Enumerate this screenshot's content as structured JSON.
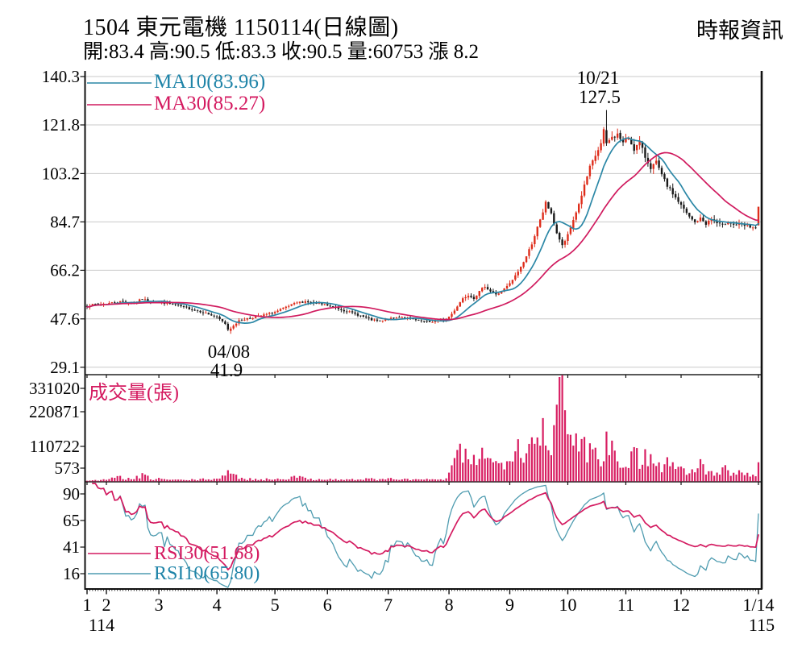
{
  "header": {
    "title": "1504  東元電機 1150114(日線圖)",
    "source": "時報資訊",
    "info": "開:83.4 高:90.5 低:83.3 收:90.5 量:60753 漲 8.2"
  },
  "colors": {
    "up_candle": "#de2d1b",
    "down_candle": "#1a1a1a",
    "ma10": "#2b87a6",
    "ma30": "#d01a5e",
    "rsi10": "#4f9cb0",
    "rsi30": "#d01a5e",
    "volume_bar": "#d81e62",
    "grid": "#c9c9c9",
    "axis": "#1a1a1a"
  },
  "chart_data": [
    {
      "id": "price",
      "type": "candlestick",
      "legend": [
        {
          "label": "MA10(83.96)",
          "color": "#1f84a8"
        },
        {
          "label": "MA30(85.27)",
          "color": "#d41a60"
        }
      ],
      "y_ticks": [
        "140.3",
        "121.8",
        "103.2",
        "84.7",
        "66.2",
        "47.6",
        "29.1"
      ],
      "y_tick_values": [
        140.3,
        121.8,
        103.2,
        84.7,
        66.2,
        47.6,
        29.1
      ],
      "ylim": [
        29.1,
        140.3
      ],
      "annotations": [
        {
          "date": "10/21",
          "value": "127.5",
          "day": 188
        },
        {
          "date": "04/08",
          "value": "41.9",
          "day": 52
        }
      ],
      "days": 244,
      "close_keyframes": [
        [
          0,
          52.5
        ],
        [
          3,
          53.2
        ],
        [
          7,
          53.5
        ],
        [
          12,
          54.2
        ],
        [
          17,
          53.8
        ],
        [
          20,
          55.2
        ],
        [
          23,
          54.2
        ],
        [
          26,
          54.0
        ],
        [
          31,
          53.2
        ],
        [
          36,
          51.8
        ],
        [
          41,
          50.5
        ],
        [
          45,
          49.0
        ],
        [
          47,
          48.2
        ],
        [
          50,
          45.8
        ],
        [
          51,
          43.6
        ],
        [
          52,
          43.9
        ],
        [
          53,
          45.2
        ],
        [
          55,
          46.8
        ],
        [
          58,
          47.8
        ],
        [
          63,
          48.8
        ],
        [
          68,
          50.2
        ],
        [
          72,
          52.0
        ],
        [
          76,
          53.8
        ],
        [
          79,
          54.3
        ],
        [
          82,
          53.6
        ],
        [
          87,
          52.8
        ],
        [
          91,
          51.5
        ],
        [
          95,
          50.2
        ],
        [
          99,
          48.8
        ],
        [
          103,
          47.2
        ],
        [
          106,
          46.6
        ],
        [
          109,
          47.4
        ],
        [
          113,
          48.4
        ],
        [
          117,
          47.6
        ],
        [
          120,
          46.8
        ],
        [
          124,
          46.4
        ],
        [
          127,
          46.8
        ],
        [
          130,
          47.4
        ],
        [
          132,
          49.5
        ],
        [
          134,
          52.5
        ],
        [
          136,
          55.5
        ],
        [
          138,
          56.8
        ],
        [
          140,
          55.6
        ],
        [
          142,
          58.0
        ],
        [
          144,
          60.2
        ],
        [
          146,
          58.2
        ],
        [
          148,
          56.8
        ],
        [
          150,
          58.0
        ],
        [
          153,
          61.0
        ],
        [
          155,
          64.0
        ],
        [
          157,
          67.5
        ],
        [
          159,
          71.5
        ],
        [
          161,
          76.5
        ],
        [
          163,
          82.5
        ],
        [
          165,
          88.0
        ],
        [
          166,
          92.5
        ],
        [
          168,
          87.5
        ],
        [
          170,
          80.5
        ],
        [
          172,
          75.5
        ],
        [
          174,
          79.5
        ],
        [
          176,
          85.5
        ],
        [
          178,
          91.5
        ],
        [
          180,
          98.5
        ],
        [
          182,
          105.5
        ],
        [
          184,
          110.0
        ],
        [
          186,
          114.5
        ],
        [
          187,
          119.5
        ],
        [
          188,
          114.8
        ],
        [
          190,
          117.0
        ],
        [
          192,
          118.2
        ],
        [
          194,
          115.0
        ],
        [
          196,
          116.8
        ],
        [
          198,
          112.5
        ],
        [
          200,
          115.2
        ],
        [
          202,
          109.5
        ],
        [
          204,
          105.5
        ],
        [
          206,
          107.5
        ],
        [
          208,
          102.5
        ],
        [
          210,
          98.5
        ],
        [
          212,
          95.5
        ],
        [
          214,
          92.5
        ],
        [
          216,
          89.5
        ],
        [
          218,
          86.5
        ],
        [
          220,
          84.5
        ],
        [
          222,
          86.0
        ],
        [
          224,
          84.0
        ],
        [
          226,
          85.8
        ],
        [
          228,
          84.2
        ],
        [
          230,
          83.2
        ],
        [
          232,
          85.0
        ],
        [
          234,
          83.6
        ],
        [
          236,
          83.8
        ],
        [
          238,
          83.2
        ],
        [
          240,
          82.8
        ],
        [
          242,
          82.3
        ],
        [
          243,
          90.5
        ]
      ],
      "forced_candles": {
        "52": {
          "open": 43.0,
          "high": 44.6,
          "low": 41.9,
          "close": 43.9
        },
        "188": {
          "open": 119.8,
          "high": 127.5,
          "low": 113.8,
          "close": 114.8
        },
        "243": {
          "open": 83.4,
          "high": 90.5,
          "low": 83.3,
          "close": 90.5
        }
      },
      "ma_periods": [
        10,
        30
      ]
    },
    {
      "id": "volume",
      "type": "bar",
      "label": "成交量(張)",
      "y_ticks": [
        "331020",
        "220871",
        "110722",
        "573"
      ],
      "max": 331020,
      "last_volume": 60753,
      "max_day": 171,
      "volume_keyframes": [
        [
          0,
          3000
        ],
        [
          7,
          5000
        ],
        [
          12,
          14000
        ],
        [
          16,
          6000
        ],
        [
          20,
          18000
        ],
        [
          24,
          7000
        ],
        [
          26,
          9000
        ],
        [
          30,
          5000
        ],
        [
          36,
          4500
        ],
        [
          41,
          6000
        ],
        [
          47,
          9000
        ],
        [
          51,
          24000
        ],
        [
          52,
          26000
        ],
        [
          54,
          15000
        ],
        [
          58,
          8000
        ],
        [
          63,
          6000
        ],
        [
          68,
          8000
        ],
        [
          72,
          10000
        ],
        [
          76,
          14000
        ],
        [
          80,
          8000
        ],
        [
          87,
          7000
        ],
        [
          93,
          5500
        ],
        [
          99,
          6500
        ],
        [
          103,
          8500
        ],
        [
          106,
          5000
        ],
        [
          109,
          9000
        ],
        [
          113,
          7000
        ],
        [
          117,
          5500
        ],
        [
          121,
          7500
        ],
        [
          125,
          5000
        ],
        [
          128,
          6000
        ],
        [
          130,
          8000
        ],
        [
          132,
          35000
        ],
        [
          134,
          80000
        ],
        [
          135,
          110000
        ],
        [
          137,
          70000
        ],
        [
          139,
          55000
        ],
        [
          141,
          80000
        ],
        [
          143,
          128000
        ],
        [
          145,
          68000
        ],
        [
          147,
          52000
        ],
        [
          150,
          62000
        ],
        [
          153,
          98000
        ],
        [
          155,
          148000
        ],
        [
          157,
          105000
        ],
        [
          159,
          88000
        ],
        [
          161,
          135000
        ],
        [
          163,
          178000
        ],
        [
          165,
          155000
        ],
        [
          167,
          118000
        ],
        [
          169,
          198000
        ],
        [
          171,
          331020
        ],
        [
          173,
          158000
        ],
        [
          175,
          135000
        ],
        [
          177,
          118000
        ],
        [
          179,
          148000
        ],
        [
          181,
          108000
        ],
        [
          183,
          92000
        ],
        [
          185,
          98000
        ],
        [
          187,
          88000
        ],
        [
          188,
          162000
        ],
        [
          190,
          98000
        ],
        [
          192,
          82000
        ],
        [
          194,
          72000
        ],
        [
          196,
          68000
        ],
        [
          198,
          88000
        ],
        [
          200,
          62000
        ],
        [
          202,
          108000
        ],
        [
          204,
          68000
        ],
        [
          206,
          52000
        ],
        [
          208,
          44000
        ],
        [
          210,
          78000
        ],
        [
          212,
          48000
        ],
        [
          214,
          38000
        ],
        [
          216,
          44000
        ],
        [
          218,
          34000
        ],
        [
          220,
          29000
        ],
        [
          222,
          58000
        ],
        [
          224,
          33000
        ],
        [
          226,
          27000
        ],
        [
          228,
          24000
        ],
        [
          230,
          43000
        ],
        [
          232,
          29000
        ],
        [
          234,
          24000
        ],
        [
          236,
          29000
        ],
        [
          238,
          21000
        ],
        [
          240,
          27000
        ],
        [
          242,
          19000
        ],
        [
          243,
          60753
        ]
      ]
    },
    {
      "id": "rsi",
      "type": "line",
      "y_ticks": [
        "90",
        "65",
        "41",
        "16"
      ],
      "legend": [
        {
          "label": "RSI30(51.68)",
          "period": 30,
          "color": "#d41a60"
        },
        {
          "label": "RSI10(65.80)",
          "period": 10,
          "color": "#4f9cb0"
        }
      ]
    }
  ],
  "x_axis": {
    "month_ticks": [
      {
        "day": 0,
        "label": "1"
      },
      {
        "day": 7,
        "label": "2"
      },
      {
        "day": 26,
        "label": "3"
      },
      {
        "day": 47,
        "label": "4"
      },
      {
        "day": 68,
        "label": "5"
      },
      {
        "day": 87,
        "label": "6"
      },
      {
        "day": 109,
        "label": "7"
      },
      {
        "day": 131,
        "label": "8"
      },
      {
        "day": 153,
        "label": "9"
      },
      {
        "day": 174,
        "label": "10"
      },
      {
        "day": 195,
        "label": "11"
      },
      {
        "day": 215,
        "label": "12"
      },
      {
        "day": 243,
        "label": "1/14"
      }
    ],
    "year_left": "114",
    "year_right": "115"
  }
}
